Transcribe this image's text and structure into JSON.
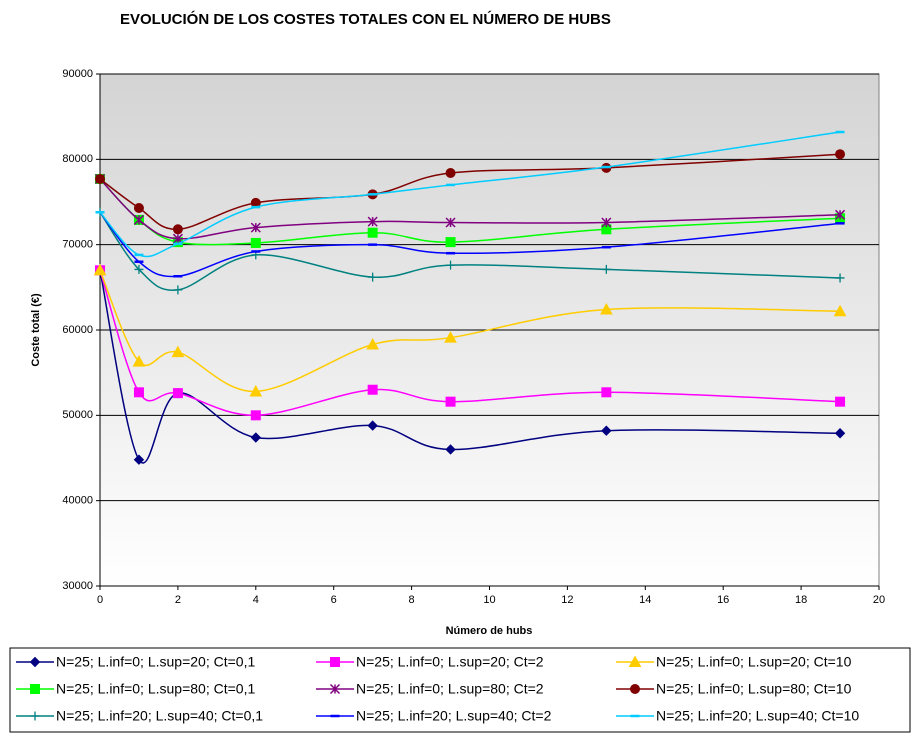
{
  "chart_data": {
    "type": "line",
    "title": "EVOLUCIÓN DE LOS COSTES TOTALES CON EL NÚMERO DE HUBS",
    "x_label": "Número de hubs",
    "y_label": "Coste total (€)",
    "x": [
      0,
      1,
      2,
      4,
      7,
      9,
      13,
      19
    ],
    "xlim": [
      0,
      20
    ],
    "xticks": [
      0,
      2,
      4,
      6,
      8,
      10,
      12,
      14,
      16,
      18,
      20
    ],
    "ylim": [
      30000,
      90000
    ],
    "yticks": [
      30000,
      40000,
      50000,
      60000,
      70000,
      80000,
      90000
    ],
    "grid": true,
    "smooth": true,
    "series": [
      {
        "name": "N=25; L.inf=0; L.sup=20; Ct=0,1",
        "color": "#000080",
        "marker": "diamond",
        "values": [
          67000,
          44800,
          52600,
          47400,
          48800,
          46000,
          48200,
          47900
        ]
      },
      {
        "name": "N=25; L.inf=0; L.sup=20; Ct=2",
        "color": "#ff00ff",
        "marker": "square",
        "values": [
          67000,
          52700,
          52600,
          50000,
          53000,
          51600,
          52700,
          51600
        ]
      },
      {
        "name": "N=25; L.inf=0; L.sup=20; Ct=10",
        "color": "#ffcc00",
        "marker": "triangle",
        "values": [
          67000,
          56300,
          57400,
          52800,
          58300,
          59100,
          62400,
          62200
        ]
      },
      {
        "name": "N=25; L.inf=0; L.sup=80; Ct=0,1",
        "color": "#00ff00",
        "marker": "square",
        "values": [
          77700,
          72900,
          70300,
          70200,
          71400,
          70300,
          71800,
          73100
        ]
      },
      {
        "name": "N=25; L.inf=0; L.sup=80; Ct=2",
        "color": "#800080",
        "marker": "star",
        "values": [
          77700,
          72900,
          70700,
          72000,
          72700,
          72600,
          72600,
          73500
        ]
      },
      {
        "name": "N=25; L.inf=0; L.sup=80; Ct=10",
        "color": "#800000",
        "marker": "circle",
        "values": [
          77700,
          74300,
          71800,
          74900,
          75900,
          78400,
          79000,
          80600
        ]
      },
      {
        "name": "N=25; L.inf=20; L.sup=40; Ct=0,1",
        "color": "#008080",
        "marker": "plus",
        "values": [
          73800,
          67100,
          64700,
          68800,
          66200,
          67600,
          67100,
          66100
        ]
      },
      {
        "name": "N=25; L.inf=20; L.sup=40; Ct=2",
        "color": "#0000ff",
        "marker": "dash",
        "values": [
          73800,
          68000,
          66300,
          69200,
          70000,
          69000,
          69700,
          72500
        ]
      },
      {
        "name": "N=25; L.inf=20; L.sup=40; Ct=10",
        "color": "#00ccff",
        "marker": "dash",
        "values": [
          73800,
          68800,
          70100,
          74400,
          75900,
          77000,
          79100,
          83200
        ]
      }
    ]
  }
}
